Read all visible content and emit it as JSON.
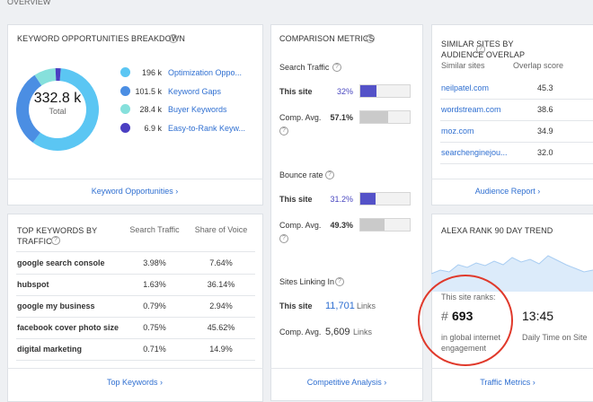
{
  "overview": "OVERVIEW",
  "keyword_opportunities": {
    "title": "KEYWORD OPPORTUNITIES BREAKDOWN",
    "total": "332.8 k",
    "total_label": "Total",
    "segments": [
      {
        "value": 196,
        "label": "196 k",
        "name": "Optimization Oppo...",
        "color": "#5bc6f3"
      },
      {
        "value": 101.5,
        "label": "101.5 k",
        "name": "Keyword Gaps",
        "color": "#4b8ee3"
      },
      {
        "value": 28.4,
        "label": "28.4 k",
        "name": "Buyer Keywords",
        "color": "#86e0dc"
      },
      {
        "value": 6.9,
        "label": "6.9 k",
        "name": "Easy-to-Rank Keyw...",
        "color": "#4b3fc2"
      }
    ],
    "link": "Keyword Opportunities ›"
  },
  "top_keywords": {
    "title": "TOP KEYWORDS BY TRAFFIC",
    "headers": [
      "Search Traffic",
      "Share of Voice"
    ],
    "rows": [
      [
        "google search console",
        "3.98%",
        "7.64%"
      ],
      [
        "hubspot",
        "1.63%",
        "36.14%"
      ],
      [
        "google my business",
        "0.79%",
        "2.94%"
      ],
      [
        "facebook cover photo size",
        "0.75%",
        "45.62%"
      ],
      [
        "digital marketing",
        "0.71%",
        "14.9%"
      ]
    ],
    "link": "Top Keywords ›"
  },
  "comparison": {
    "title": "COMPARISON METRICS",
    "this_color": "#5452c8",
    "comp_color": "#cacaca",
    "sections": [
      {
        "label": "Search Traffic",
        "this_label": "This site",
        "this_value": 32,
        "this_value_label": "32%",
        "comp_label": "Comp. Avg.",
        "comp_value": 57.1,
        "comp_value_label": "57.1%"
      },
      {
        "label": "Bounce rate",
        "this_label": "This site",
        "this_value": 31.2,
        "this_value_label": "31.2%",
        "comp_label": "Comp. Avg.",
        "comp_value": 49.3,
        "comp_value_label": "49.3%"
      }
    ],
    "linking": {
      "label": "Sites Linking In",
      "this_label": "This site",
      "this_value": "11,701",
      "comp_label": "Comp. Avg.",
      "comp_value": "5,609",
      "unit": "Links"
    },
    "link": "Competitive Analysis ›"
  },
  "similar_sites": {
    "title": "SIMILAR SITES BY AUDIENCE OVERLAP",
    "headers": [
      "Similar sites",
      "Overlap score"
    ],
    "rows": [
      [
        "neilpatel.com",
        "45.3"
      ],
      [
        "wordstream.com",
        "38.6"
      ],
      [
        "moz.com",
        "34.9"
      ],
      [
        "searchenginejou...",
        "32.0"
      ]
    ],
    "link": "Audience Report ›"
  },
  "alexa_rank": {
    "title": "ALEXA RANK 90 DAY TREND",
    "rank_label": "This site ranks:",
    "hash": "#",
    "rank": "693",
    "rank_desc": "in global internet engagement",
    "time": "13:45",
    "time_desc": "Daily Time on Site",
    "link": "Traffic Metrics ›"
  }
}
